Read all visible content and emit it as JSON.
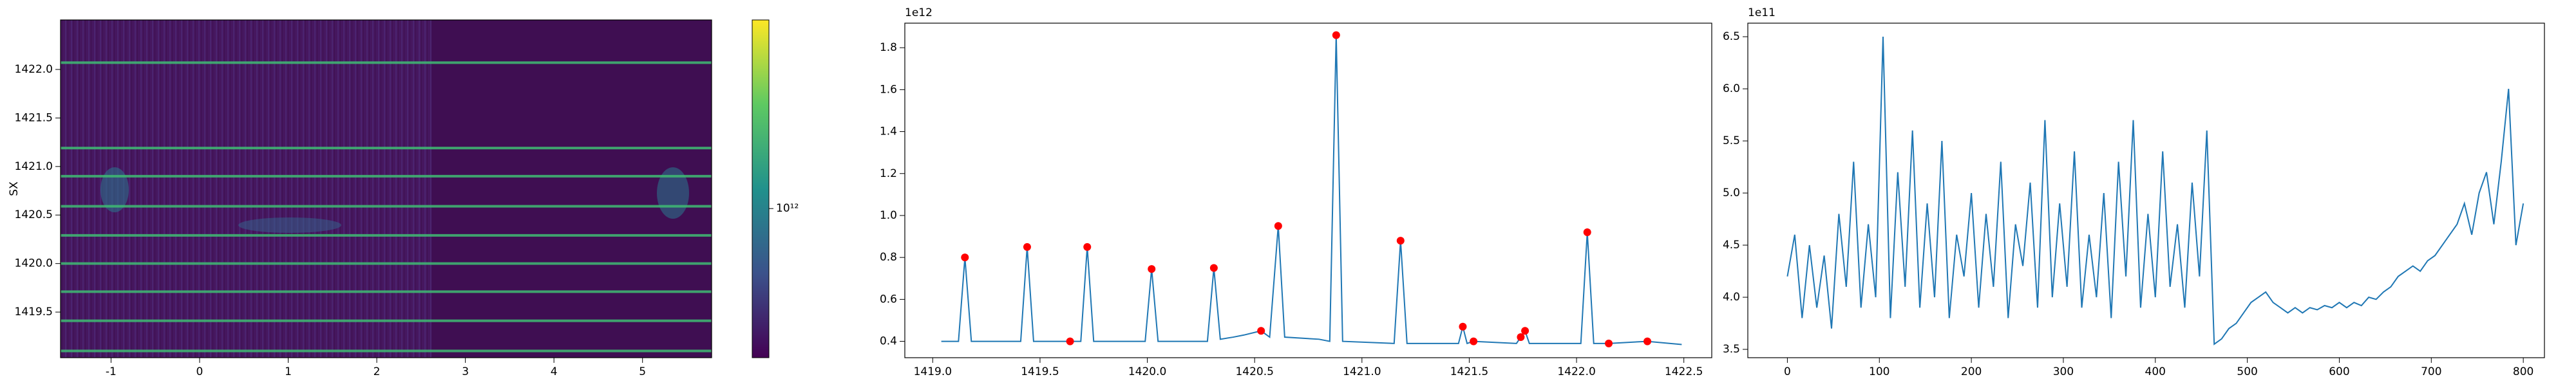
{
  "chart_data": [
    {
      "type": "heatmap",
      "ylabel": "SX",
      "xlim": [
        -1.57,
        5.78
      ],
      "ylim": [
        1419.03,
        1422.51
      ],
      "xticks": [
        -1,
        0,
        1,
        2,
        3,
        4,
        5
      ],
      "yticks": [
        1419.5,
        {
          "value": 1420,
          "label": "1420.0"
        },
        1420.5,
        {
          "value": 1421,
          "label": "1421.0"
        },
        1421.5,
        {
          "value": 1422,
          "label": "1422.0"
        }
      ],
      "row_peaks": [
        1419.1,
        1419.41,
        1419.71,
        1420.0,
        1420.29,
        1420.59,
        1420.9,
        1421.19,
        1422.07
      ],
      "colorbar": {
        "scale": "log",
        "lim": [
          380000000000,
          3400000000000
        ],
        "ticks": [
          {
            "value": 1000000000000,
            "label": "10¹²"
          }
        ]
      }
    },
    {
      "type": "line",
      "offset_label": "1e12",
      "xlim": [
        1418.87,
        1422.63
      ],
      "ylim": [
        0.322,
        1.917
      ],
      "xticks": [
        {
          "value": 1419,
          "label": "1419.0"
        },
        1419.5,
        {
          "value": 1420,
          "label": "1420.0"
        },
        1420.5,
        {
          "value": 1421,
          "label": "1421.0"
        },
        1421.5,
        {
          "value": 1422,
          "label": "1422.0"
        },
        1422.5
      ],
      "yticks": [
        0.4,
        0.6,
        0.8,
        {
          "value": 1,
          "label": "1.0"
        },
        1.2,
        1.4,
        1.6,
        1.8
      ],
      "series": [
        {
          "color": "#1f77b4",
          "x": [
            1419.04,
            1419.12,
            1419.15,
            1419.18,
            1419.41,
            1419.44,
            1419.47,
            1419.64,
            1419.69,
            1419.72,
            1419.75,
            1419.99,
            1420.02,
            1420.05,
            1420.28,
            1420.31,
            1420.34,
            1420.4,
            1420.45,
            1420.53,
            1420.57,
            1420.61,
            1420.64,
            1420.8,
            1420.85,
            1420.88,
            1420.91,
            1421.15,
            1421.18,
            1421.21,
            1421.45,
            1421.47,
            1421.49,
            1421.52,
            1421.72,
            1421.74,
            1421.76,
            1421.78,
            1422.02,
            1422.05,
            1422.08,
            1422.15,
            1422.33,
            1422.49
          ],
          "values": [
            0.4,
            0.4,
            0.8,
            0.4,
            0.4,
            0.85,
            0.4,
            0.4,
            0.4,
            0.85,
            0.4,
            0.4,
            0.745,
            0.4,
            0.4,
            0.75,
            0.41,
            0.42,
            0.43,
            0.45,
            0.42,
            0.95,
            0.42,
            0.41,
            0.4,
            1.86,
            0.4,
            0.39,
            0.88,
            0.39,
            0.39,
            0.47,
            0.39,
            0.4,
            0.39,
            0.42,
            0.45,
            0.39,
            0.39,
            0.92,
            0.39,
            0.39,
            0.4,
            0.385
          ]
        }
      ],
      "peaks": {
        "color": "#ff0000",
        "x": [
          1419.15,
          1419.44,
          1419.64,
          1419.72,
          1420.02,
          1420.31,
          1420.53,
          1420.61,
          1420.88,
          1421.18,
          1421.47,
          1421.52,
          1421.74,
          1421.76,
          1422.05,
          1422.15,
          1422.33
        ],
        "values": [
          0.8,
          0.85,
          0.4,
          0.85,
          0.745,
          0.75,
          0.45,
          0.95,
          1.86,
          0.88,
          0.47,
          0.4,
          0.42,
          0.45,
          0.92,
          0.39,
          0.4
        ]
      }
    },
    {
      "type": "line",
      "offset_label": "1e11",
      "xlim": [
        -43,
        823
      ],
      "ylim": [
        3.42,
        6.63
      ],
      "xticks": [
        0,
        100,
        200,
        300,
        400,
        500,
        600,
        700,
        800
      ],
      "yticks": [
        3.5,
        {
          "value": 4,
          "label": "4.0"
        },
        4.5,
        {
          "value": 5,
          "label": "5.0"
        },
        5.5,
        {
          "value": 6,
          "label": "6.0"
        },
        6.5
      ],
      "series": [
        {
          "color": "#1f77b4",
          "x": [
            0,
            8,
            16,
            24,
            32,
            40,
            48,
            56,
            64,
            72,
            80,
            88,
            96,
            104,
            112,
            120,
            128,
            136,
            144,
            152,
            160,
            168,
            176,
            184,
            192,
            200,
            208,
            216,
            224,
            232,
            240,
            248,
            256,
            264,
            272,
            280,
            288,
            296,
            304,
            312,
            320,
            328,
            336,
            344,
            352,
            360,
            368,
            376,
            384,
            392,
            400,
            408,
            416,
            424,
            432,
            440,
            448,
            456,
            464,
            472,
            480,
            488,
            496,
            504,
            512,
            520,
            528,
            536,
            544,
            552,
            560,
            568,
            576,
            584,
            592,
            600,
            608,
            616,
            624,
            632,
            640,
            648,
            656,
            664,
            672,
            680,
            688,
            696,
            704,
            712,
            720,
            728,
            736,
            744,
            752,
            760,
            768,
            776,
            784,
            792,
            800
          ],
          "values": [
            4.2,
            4.6,
            3.8,
            4.5,
            3.9,
            4.4,
            3.7,
            4.8,
            4.1,
            5.3,
            3.9,
            4.7,
            4.0,
            6.5,
            3.8,
            5.2,
            4.1,
            5.6,
            3.9,
            4.9,
            4.0,
            5.5,
            3.8,
            4.6,
            4.2,
            5.0,
            3.9,
            4.8,
            4.1,
            5.3,
            3.8,
            4.7,
            4.3,
            5.1,
            3.9,
            5.7,
            4.0,
            4.9,
            4.1,
            5.4,
            3.9,
            4.6,
            4.0,
            5.0,
            3.8,
            5.3,
            4.2,
            5.7,
            3.9,
            4.8,
            4.0,
            5.4,
            4.1,
            4.7,
            3.9,
            5.1,
            4.2,
            5.6,
            3.55,
            3.6,
            3.7,
            3.75,
            3.85,
            3.95,
            4.0,
            4.05,
            3.95,
            3.9,
            3.85,
            3.9,
            3.85,
            3.9,
            3.88,
            3.92,
            3.9,
            3.95,
            3.9,
            3.95,
            3.92,
            4.0,
            3.98,
            4.05,
            4.1,
            4.2,
            4.25,
            4.3,
            4.25,
            4.35,
            4.4,
            4.5,
            4.6,
            4.7,
            4.9,
            4.6,
            5.0,
            5.2,
            4.7,
            5.3,
            6.0,
            4.5,
            4.9
          ]
        }
      ]
    }
  ]
}
